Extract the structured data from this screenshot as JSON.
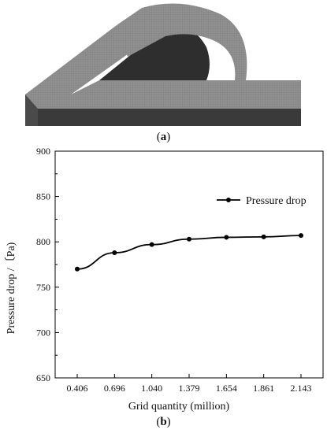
{
  "figure_a": {
    "label_open": "(",
    "label_letter": "a",
    "label_close": ")"
  },
  "figure_b": {
    "label_open": "(",
    "label_letter": "b",
    "label_close": ")"
  },
  "colors": {
    "geometry_top": "#8e8e8e",
    "geometry_side": "#3a3a3a",
    "line": "#000000"
  },
  "chart_data": {
    "type": "line",
    "categories": [
      "0.406",
      "0.696",
      "1.040",
      "1.379",
      "1.654",
      "1.861",
      "2.143"
    ],
    "series": [
      {
        "name": "Pressure drop",
        "values": [
          770,
          788,
          797,
          803,
          805,
          805.5,
          807
        ]
      }
    ],
    "xlabel": "Grid quantity (million)",
    "ylabel": "Pressure drop /〔Pa)",
    "ylim": [
      650,
      900
    ],
    "yticks": [
      650,
      700,
      750,
      800,
      850,
      900
    ],
    "grid": false,
    "legend_position": "top-right"
  }
}
